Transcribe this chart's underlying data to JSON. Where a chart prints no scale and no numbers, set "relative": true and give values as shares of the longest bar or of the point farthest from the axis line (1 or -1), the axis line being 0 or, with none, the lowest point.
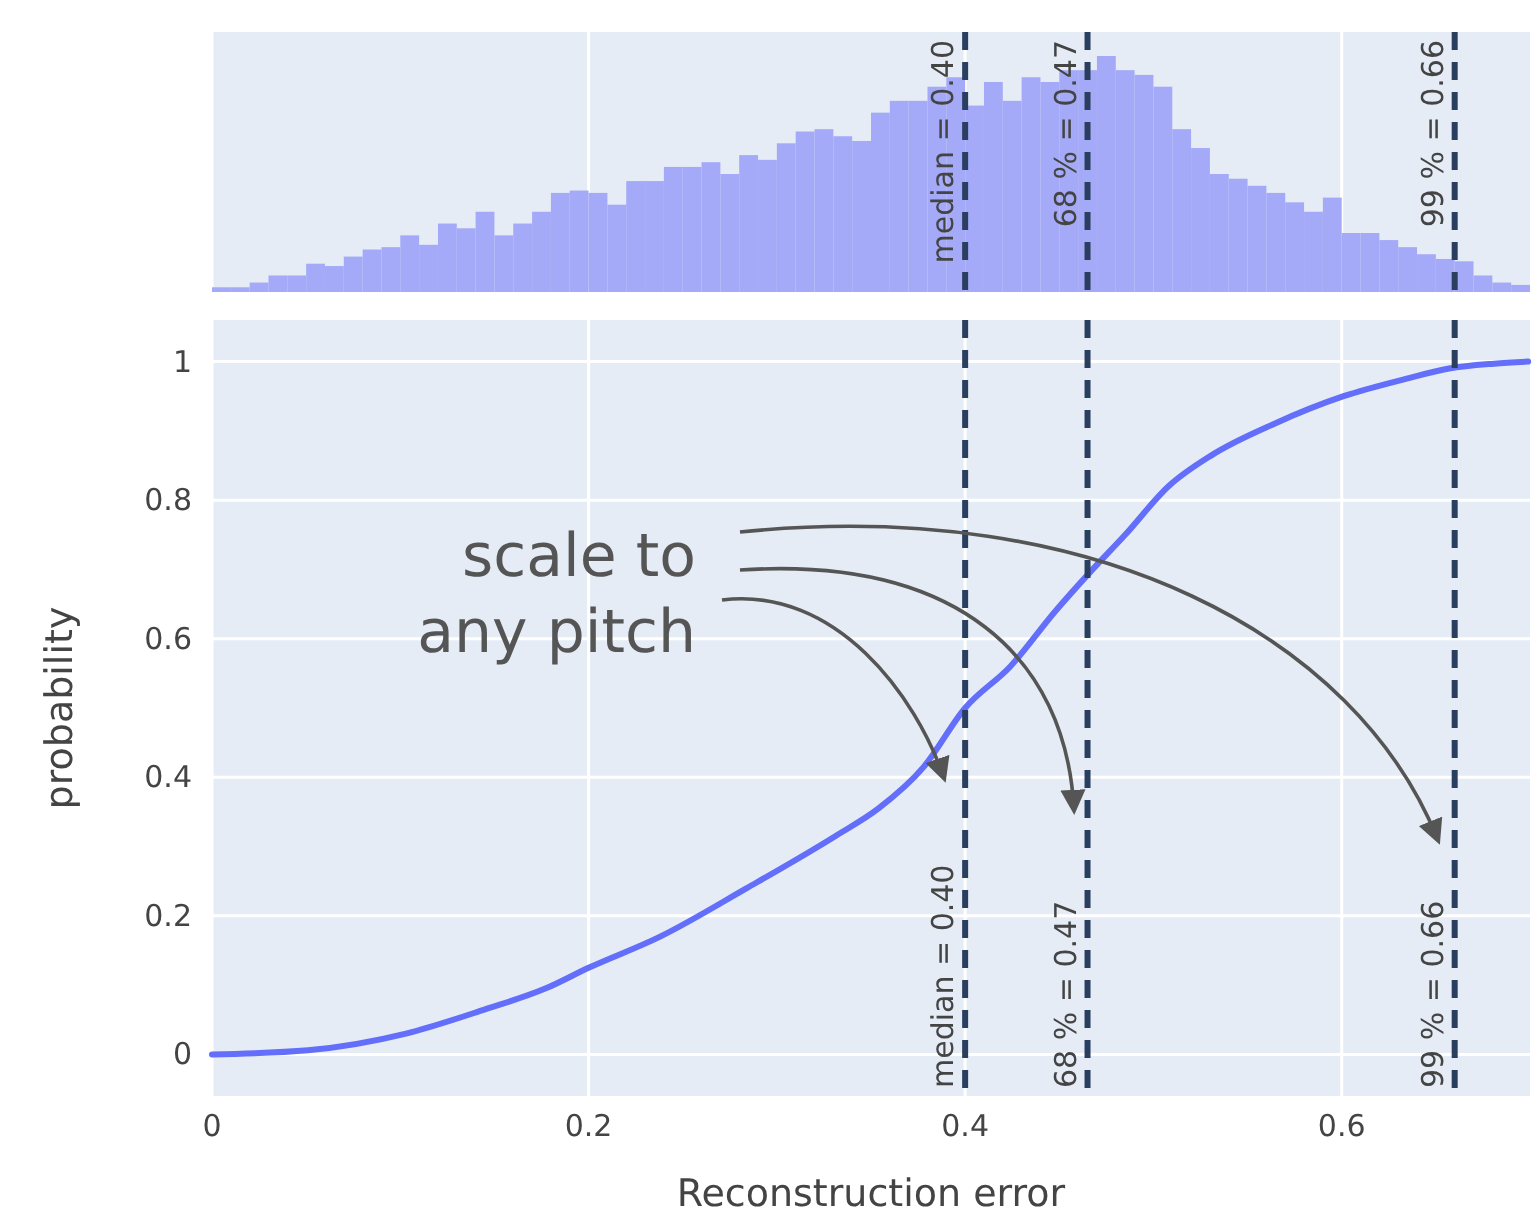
{
  "chart_data": [
    {
      "type": "bar",
      "relative": true,
      "color": "#a4aaf7",
      "xlim": [
        0,
        0.7
      ],
      "tick_labels": false,
      "grid": "x",
      "xticks": [
        0,
        0.2,
        0.4,
        0.6
      ],
      "x": [
        0.005,
        0.015,
        0.025,
        0.035,
        0.045,
        0.055,
        0.065,
        0.075,
        0.085,
        0.095,
        0.105,
        0.115,
        0.125,
        0.135,
        0.145,
        0.155,
        0.165,
        0.175,
        0.185,
        0.195,
        0.205,
        0.215,
        0.225,
        0.235,
        0.245,
        0.255,
        0.265,
        0.275,
        0.285,
        0.295,
        0.305,
        0.315,
        0.325,
        0.335,
        0.345,
        0.355,
        0.365,
        0.375,
        0.385,
        0.395,
        0.405,
        0.415,
        0.425,
        0.435,
        0.445,
        0.455,
        0.465,
        0.475,
        0.485,
        0.495,
        0.505,
        0.515,
        0.525,
        0.535,
        0.545,
        0.555,
        0.565,
        0.575,
        0.585,
        0.595,
        0.605,
        0.615,
        0.625,
        0.635,
        0.645,
        0.655,
        0.665,
        0.675,
        0.685,
        0.695
      ],
      "ref_lines": [
        {
          "axis": "x",
          "value": 0.4,
          "label": "median = 0.40",
          "color": "#2a3f5f",
          "line_style": "dashed"
        },
        {
          "axis": "x",
          "value": 0.465,
          "label": "68 % = 0.47",
          "color": "#2a3f5f",
          "line_style": "dashed"
        },
        {
          "axis": "x",
          "value": 0.66,
          "label": "99 % = 0.66",
          "color": "#2a3f5f",
          "line_style": "dashed"
        }
      ],
      "values": [
        0.02,
        0.02,
        0.04,
        0.07,
        0.07,
        0.12,
        0.11,
        0.15,
        0.18,
        0.19,
        0.24,
        0.2,
        0.29,
        0.27,
        0.34,
        0.24,
        0.29,
        0.34,
        0.42,
        0.43,
        0.42,
        0.37,
        0.47,
        0.47,
        0.53,
        0.53,
        0.55,
        0.5,
        0.58,
        0.56,
        0.63,
        0.68,
        0.69,
        0.66,
        0.64,
        0.76,
        0.81,
        0.81,
        0.87,
        0.91,
        0.79,
        0.89,
        0.81,
        0.91,
        0.89,
        0.94,
        0.94,
        1,
        0.94,
        0.92,
        0.87,
        0.69,
        0.61,
        0.5,
        0.48,
        0.45,
        0.42,
        0.38,
        0.34,
        0.4,
        0.25,
        0.25,
        0.22,
        0.19,
        0.16,
        0.14,
        0.13,
        0.07,
        0.04,
        0.03
      ]
    },
    {
      "type": "line",
      "xlabel": "Reconstruction error",
      "ylabel": "probability",
      "xlim": [
        0,
        0.7
      ],
      "ylim": [
        -0.06,
        1.06
      ],
      "xticks": [
        0,
        0.2,
        0.4,
        0.6
      ],
      "yticks": [
        0,
        0.2,
        0.4,
        0.6,
        0.8,
        1
      ],
      "grid": true,
      "marker": "none",
      "line_style": "solid",
      "series": [
        {
          "color": "#636efa",
          "x": [
            0,
            0.051,
            0.103,
            0.145,
            0.177,
            0.2,
            0.238,
            0.284,
            0.331,
            0.354,
            0.378,
            0.4,
            0.424,
            0.448,
            0.466,
            0.485,
            0.508,
            0.531,
            0.564,
            0.601,
            0.634,
            0.657,
            0.681,
            0.699
          ],
          "values": [
            0,
            0.006,
            0.03,
            0.065,
            0.095,
            0.125,
            0.17,
            0.24,
            0.315,
            0.355,
            0.415,
            0.5,
            0.56,
            0.64,
            0.695,
            0.75,
            0.82,
            0.865,
            0.91,
            0.95,
            0.975,
            0.99,
            0.997,
            1
          ]
        }
      ],
      "ref_lines": [
        {
          "axis": "x",
          "value": 0.4,
          "label": "median = 0.40",
          "color": "#2a3f5f",
          "line_style": "dashed"
        },
        {
          "axis": "x",
          "value": 0.465,
          "label": "68 % = 0.47",
          "color": "#2a3f5f",
          "line_style": "dashed"
        },
        {
          "axis": "x",
          "value": 0.66,
          "label": "99 % = 0.66",
          "color": "#2a3f5f",
          "line_style": "dashed"
        }
      ],
      "annotations": [
        "scale to\nany pitch"
      ]
    }
  ]
}
